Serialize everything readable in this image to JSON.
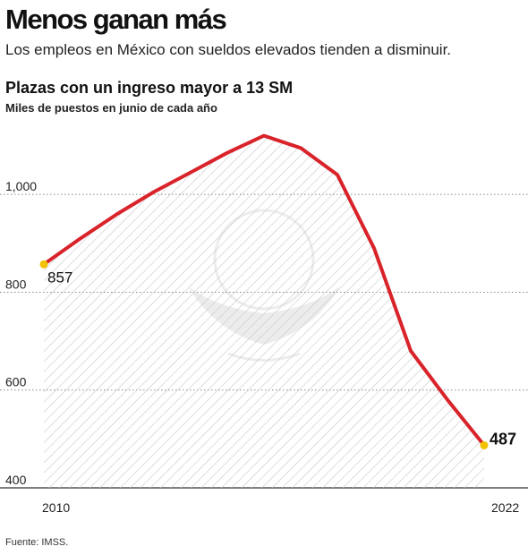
{
  "header": {
    "title": "Menos ganan más",
    "subtitle": "Los empleos en México con sueldos elevados tienden a disminuir."
  },
  "source": "Fuente: IMSS.",
  "colors": {
    "line": "#d9232a",
    "marker": "#f2c200",
    "hatch": "#c8c8c8",
    "grid": "#888888"
  },
  "chart_data": {
    "type": "area",
    "title": "Plazas con un ingreso mayor a 13 SM",
    "subtitle": "Miles de puestos en junio de cada año",
    "x": [
      2010,
      2011,
      2012,
      2013,
      2014,
      2015,
      2016,
      2017,
      2018,
      2019,
      2020,
      2021,
      2022
    ],
    "values": [
      857,
      910,
      960,
      1005,
      1045,
      1085,
      1120,
      1095,
      1040,
      890,
      680,
      580,
      487
    ],
    "x_tick_labels": [
      "2010",
      "2022"
    ],
    "y_ticks": [
      400,
      600,
      800,
      1000
    ],
    "y_tick_labels": [
      "400",
      "600",
      "800",
      "1,000"
    ],
    "ylim": [
      400,
      1150
    ],
    "grid": true,
    "fill_pattern": "diagonal-hatch",
    "annotations": [
      {
        "x": 2010,
        "label": "857"
      },
      {
        "x": 2022,
        "label": "487"
      }
    ]
  }
}
